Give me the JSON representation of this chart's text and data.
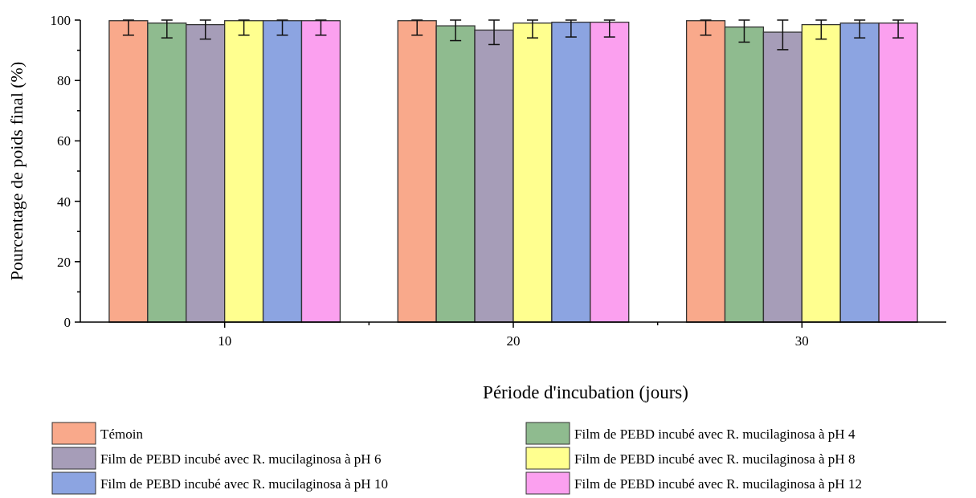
{
  "chart_data": {
    "type": "bar",
    "xlabel": "Période d'incubation (jours)",
    "ylabel": "Pourcentage de poids final (%)",
    "x": [
      10,
      20,
      30
    ],
    "xlim": [
      5,
      35
    ],
    "xticks": [
      10,
      {
        "value": 15,
        "label": null
      },
      20,
      {
        "value": 25,
        "label": null
      },
      30
    ],
    "ylim": [
      0,
      100
    ],
    "yticks": [
      0,
      {
        "value": 10,
        "label": null
      },
      20,
      {
        "value": 30,
        "label": null
      },
      40,
      {
        "value": 50,
        "label": null
      },
      60,
      {
        "value": 70,
        "label": null
      },
      80,
      {
        "value": 90,
        "label": null
      },
      100
    ],
    "grid": false,
    "legend": "bottom",
    "series": [
      {
        "name": "Témoin",
        "color": "#f9a98b",
        "values": [
          99.8,
          99.8,
          99.8
        ],
        "errors": [
          [
            95.0,
            100
          ],
          [
            95.0,
            100
          ],
          [
            95.0,
            100
          ]
        ]
      },
      {
        "name": "Film de PEBD incubé avec R. mucilaginosa à pH 4",
        "color": "#8fbb8f",
        "values": [
          99.0,
          98.1,
          97.7
        ],
        "errors": [
          [
            94.1,
            100
          ],
          [
            93.2,
            100
          ],
          [
            92.7,
            100
          ]
        ]
      },
      {
        "name": "Film de PEBD incubé avec R. mucilaginosa à pH 6",
        "color": "#a69db8",
        "values": [
          98.5,
          96.7,
          96.0
        ],
        "errors": [
          [
            93.7,
            100
          ],
          [
            91.9,
            100
          ],
          [
            90.2,
            100
          ]
        ]
      },
      {
        "name": "Film de PEBD incubé avec R. mucilaginosa à pH 8",
        "color": "#ffff8f",
        "values": [
          99.8,
          99.0,
          98.5
        ],
        "errors": [
          [
            95.0,
            100
          ],
          [
            94.1,
            100
          ],
          [
            93.7,
            100
          ]
        ]
      },
      {
        "name": "Film de PEBD incubé avec R. mucilaginosa à pH 10",
        "color": "#8ca4e1",
        "values": [
          99.8,
          99.3,
          99.0
        ],
        "errors": [
          [
            95.0,
            100
          ],
          [
            94.4,
            100
          ],
          [
            94.1,
            100
          ]
        ]
      },
      {
        "name": "Film de PEBD incubé avec R. mucilaginosa à pH 12",
        "color": "#fba0ef",
        "values": [
          99.8,
          99.3,
          99.0
        ],
        "errors": [
          [
            95.0,
            100
          ],
          [
            94.4,
            100
          ],
          [
            94.1,
            100
          ]
        ]
      }
    ]
  }
}
